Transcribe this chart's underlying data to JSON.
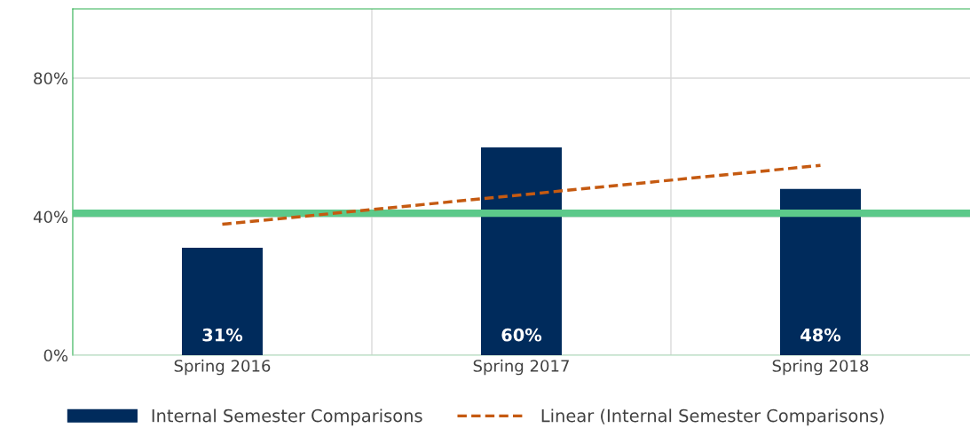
{
  "chart_data": {
    "type": "bar",
    "categories": [
      "Spring 2016",
      "Spring 2017",
      "Spring 2018"
    ],
    "series": [
      {
        "name": "Internal Semester Comparisons",
        "color": "#002b5c",
        "values": [
          31,
          60,
          48
        ],
        "value_labels": [
          "31%",
          "60%",
          "48%"
        ]
      },
      {
        "name": "Linear (Internal Semester Comparisons)",
        "type": "line",
        "line_style": "dashed",
        "color": "#c55a11",
        "values": [
          37.8,
          46.3,
          54.8
        ]
      }
    ],
    "ylim": [
      0,
      100
    ],
    "yticks": [
      {
        "value": 0,
        "label": "0%"
      },
      {
        "value": 40,
        "label": "40%"
      },
      {
        "value": 80,
        "label": "80%"
      }
    ],
    "ref_lines": [
      {
        "axis": "y",
        "value": 41,
        "color": "#5cc98a"
      }
    ],
    "grid": true,
    "legend": "bottom",
    "marker": "none"
  }
}
